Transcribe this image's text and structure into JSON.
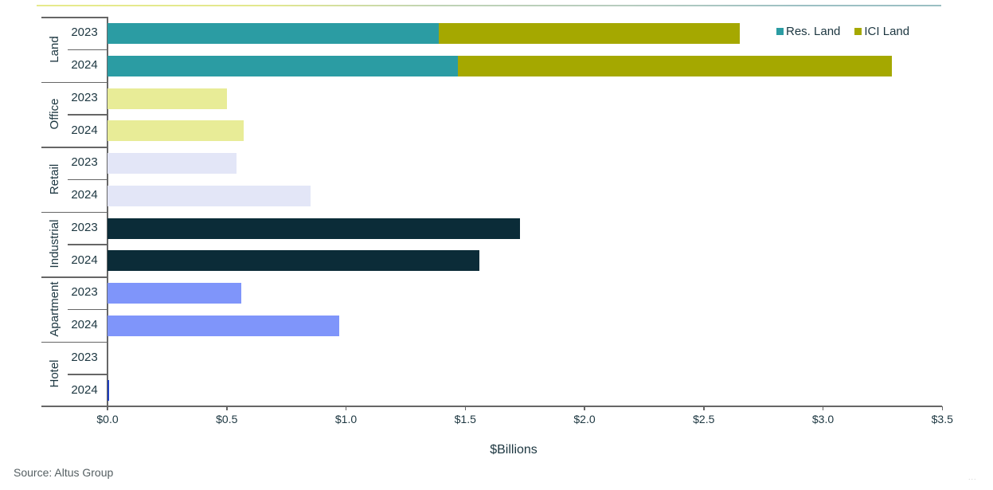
{
  "chart_data": {
    "type": "bar",
    "orientation": "horizontal",
    "stacked": true,
    "title": "",
    "xlabel": "$Billions",
    "ylabel": "",
    "xlim": [
      0,
      3.5
    ],
    "x_ticks": [
      "$0.0",
      "$0.5",
      "$1.0",
      "$1.5",
      "$2.0",
      "$2.5",
      "$3.0",
      "$3.5"
    ],
    "x_tick_values": [
      0,
      0.5,
      1.0,
      1.5,
      2.0,
      2.5,
      3.0,
      3.5
    ],
    "grid": false,
    "legend_position": "top-right",
    "legend": [
      {
        "name": "Res. Land",
        "color": "#2b9ca3"
      },
      {
        "name": "ICI Land",
        "color": "#a5a800"
      }
    ],
    "groups": [
      {
        "category": "Land",
        "color": null,
        "rows": [
          {
            "year": "2023",
            "segments": [
              {
                "series": "Res. Land",
                "value": 1.39,
                "color": "#2b9ca3"
              },
              {
                "series": "ICI Land",
                "value": 1.26,
                "color": "#a5a800"
              }
            ]
          },
          {
            "year": "2024",
            "segments": [
              {
                "series": "Res. Land",
                "value": 1.47,
                "color": "#2b9ca3"
              },
              {
                "series": "ICI Land",
                "value": 1.82,
                "color": "#a5a800"
              }
            ]
          }
        ]
      },
      {
        "category": "Office",
        "rows": [
          {
            "year": "2023",
            "segments": [
              {
                "series": "Office",
                "value": 0.5,
                "color": "#e8ec97"
              }
            ]
          },
          {
            "year": "2024",
            "segments": [
              {
                "series": "Office",
                "value": 0.57,
                "color": "#e8ec97"
              }
            ]
          }
        ]
      },
      {
        "category": "Retail",
        "rows": [
          {
            "year": "2023",
            "segments": [
              {
                "series": "Retail",
                "value": 0.54,
                "color": "#e3e6f7"
              }
            ]
          },
          {
            "year": "2024",
            "segments": [
              {
                "series": "Retail",
                "value": 0.85,
                "color": "#e3e6f7"
              }
            ]
          }
        ]
      },
      {
        "category": "Industrial",
        "rows": [
          {
            "year": "2023",
            "segments": [
              {
                "series": "Industrial",
                "value": 1.73,
                "color": "#0b2c38"
              }
            ]
          },
          {
            "year": "2024",
            "segments": [
              {
                "series": "Industrial",
                "value": 1.56,
                "color": "#0b2c38"
              }
            ]
          }
        ]
      },
      {
        "category": "Apartment",
        "rows": [
          {
            "year": "2023",
            "segments": [
              {
                "series": "Apartment",
                "value": 0.56,
                "color": "#7f95fa"
              }
            ]
          },
          {
            "year": "2024",
            "segments": [
              {
                "series": "Apartment",
                "value": 0.97,
                "color": "#7f95fa"
              }
            ]
          }
        ]
      },
      {
        "category": "Hotel",
        "rows": [
          {
            "year": "2023",
            "segments": [
              {
                "series": "Hotel",
                "value": 0.0,
                "color": "#1f3ec0"
              }
            ]
          },
          {
            "year": "2024",
            "segments": [
              {
                "series": "Hotel",
                "value": 0.005,
                "color": "#1f3ec0"
              }
            ]
          }
        ]
      }
    ]
  },
  "footer": {
    "source": "Source:  Altus Group",
    "more_indicator": "..."
  }
}
